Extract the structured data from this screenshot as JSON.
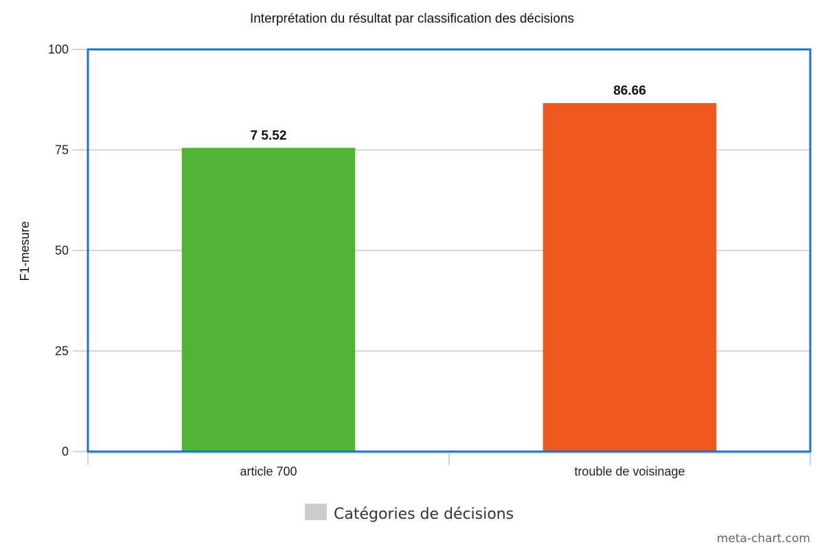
{
  "chart_data": {
    "type": "bar",
    "title": "Interprétation du résultat par classification des décisions",
    "xlabel": "",
    "ylabel": "F1-mesure",
    "categories": [
      "article 700",
      "trouble de voisinage"
    ],
    "values": [
      75.52,
      86.66
    ],
    "value_labels": [
      "7 5.52",
      "86.66"
    ],
    "bar_colors": [
      "#52b435",
      "#ed581e"
    ],
    "ylim": [
      0,
      100
    ],
    "yticks": [
      0,
      25,
      50,
      75,
      100
    ],
    "grid": true,
    "legend": {
      "label": "Catégories de décisions",
      "swatch_color": "#cccccc",
      "position": "bottom-center"
    },
    "frame_color": "#1a74c4"
  },
  "watermark": "meta-chart.com"
}
